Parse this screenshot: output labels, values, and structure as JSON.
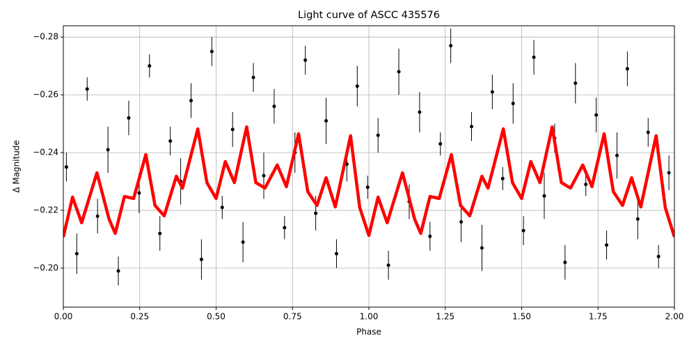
{
  "chart_data": {
    "type": "scatter-line",
    "title": "Light curve of ASCC 435576",
    "xlabel": "Phase",
    "ylabel": "Δ Magnitude",
    "xlim": [
      0,
      2
    ],
    "ylim": [
      -0.2839,
      -0.1865
    ],
    "y_inverted": true,
    "grid": true,
    "xticks": [
      {
        "value": 0,
        "label": "0.00"
      },
      {
        "value": 0.25,
        "label": "0.25"
      },
      {
        "value": 0.5,
        "label": "0.50"
      },
      {
        "value": 0.75,
        "label": "0.75"
      },
      {
        "value": 1,
        "label": "1.00"
      },
      {
        "value": 1.25,
        "label": "1.25"
      },
      {
        "value": 1.5,
        "label": "1.50"
      },
      {
        "value": 1.75,
        "label": "1.75"
      },
      {
        "value": 2,
        "label": "2.00"
      }
    ],
    "yticks": [
      {
        "value": -0.28,
        "label": "−0.28"
      },
      {
        "value": -0.26,
        "label": "−0.26"
      },
      {
        "value": -0.24,
        "label": "−0.24"
      },
      {
        "value": -0.22,
        "label": "−0.22"
      },
      {
        "value": -0.2,
        "label": "−0.20"
      }
    ],
    "points": {
      "color": "#000000",
      "x": [
        0.01,
        0.044,
        0.078,
        0.112,
        0.146,
        0.18,
        0.214,
        0.248,
        0.282,
        0.316,
        0.35,
        0.384,
        0.418,
        0.452,
        0.486,
        0.52,
        0.554,
        0.588,
        0.622,
        0.656,
        0.69,
        0.724,
        0.758,
        0.792,
        0.826,
        0.86,
        0.894,
        0.928,
        0.962,
        0.996,
        1.03,
        1.064,
        1.098,
        1.132,
        1.166,
        1.2,
        1.234,
        1.268,
        1.302,
        1.336,
        1.37,
        1.404,
        1.438,
        1.472,
        1.506,
        1.54,
        1.574,
        1.608,
        1.642,
        1.676,
        1.71,
        1.744,
        1.778,
        1.812,
        1.846,
        1.88,
        1.914,
        1.948,
        1.982
      ],
      "y": [
        -0.235,
        -0.205,
        -0.262,
        -0.218,
        -0.241,
        -0.199,
        -0.252,
        -0.226,
        -0.27,
        -0.212,
        -0.244,
        -0.23,
        -0.258,
        -0.203,
        -0.275,
        -0.221,
        -0.248,
        -0.209,
        -0.266,
        -0.232,
        -0.256,
        -0.214,
        -0.24,
        -0.272,
        -0.219,
        -0.251,
        -0.205,
        -0.236,
        -0.263,
        -0.228,
        -0.246,
        -0.201,
        -0.268,
        -0.223,
        -0.254,
        -0.211,
        -0.243,
        -0.277,
        -0.216,
        -0.249,
        -0.207,
        -0.261,
        -0.231,
        -0.257,
        -0.213,
        -0.273,
        -0.225,
        -0.245,
        -0.202,
        -0.264,
        -0.229,
        -0.253,
        -0.208,
        -0.239,
        -0.269,
        -0.217,
        -0.247,
        -0.204,
        -0.233
      ],
      "errors": [
        0.005,
        0.007,
        0.004,
        0.006,
        0.008,
        0.005,
        0.006,
        0.007,
        0.004,
        0.006,
        0.005,
        0.008,
        0.006,
        0.007,
        0.005,
        0.004,
        0.006,
        0.007,
        0.005,
        0.008,
        0.006,
        0.004,
        0.007,
        0.005,
        0.006,
        0.008,
        0.005,
        0.006,
        0.007,
        0.004,
        0.006,
        0.005,
        0.008,
        0.006,
        0.007,
        0.005,
        0.004,
        0.006,
        0.007,
        0.005,
        0.008,
        0.006,
        0.004,
        0.007,
        0.005,
        0.006,
        0.008,
        0.005,
        0.006,
        0.007,
        0.004,
        0.006,
        0.005,
        0.008,
        0.006,
        0.007,
        0.005,
        0.004,
        0.006
      ]
    },
    "model": {
      "color": "#ff0000",
      "x": [
        0,
        0.03,
        0.06,
        0.11,
        0.15,
        0.17,
        0.2,
        0.23,
        0.27,
        0.3,
        0.33,
        0.37,
        0.39,
        0.44,
        0.47,
        0.5,
        0.53,
        0.56,
        0.6,
        0.63,
        0.66,
        0.7,
        0.73,
        0.77,
        0.8,
        0.83,
        0.86,
        0.89,
        0.94,
        0.97,
        1.0,
        1.03,
        1.06,
        1.11,
        1.15,
        1.17,
        1.2,
        1.23,
        1.27,
        1.3,
        1.33,
        1.37,
        1.39,
        1.44,
        1.47,
        1.5,
        1.53,
        1.56,
        1.6,
        1.63,
        1.66,
        1.7,
        1.73,
        1.77,
        1.8,
        1.83,
        1.86,
        1.89,
        1.94,
        1.97,
        2.0
      ],
      "y": [
        -0.2108,
        -0.2246,
        -0.2157,
        -0.233,
        -0.2169,
        -0.212,
        -0.2248,
        -0.2241,
        -0.2393,
        -0.2217,
        -0.2181,
        -0.2318,
        -0.2277,
        -0.2482,
        -0.2296,
        -0.2241,
        -0.2369,
        -0.2296,
        -0.2489,
        -0.2296,
        -0.2277,
        -0.2357,
        -0.2282,
        -0.2465,
        -0.2265,
        -0.2217,
        -0.2313,
        -0.2212,
        -0.2458,
        -0.221,
        -0.2113,
        -0.2246,
        -0.2157,
        -0.233,
        -0.2169,
        -0.212,
        -0.2248,
        -0.2241,
        -0.2393,
        -0.2217,
        -0.2181,
        -0.2318,
        -0.2277,
        -0.2482,
        -0.2296,
        -0.2241,
        -0.2369,
        -0.2296,
        -0.2489,
        -0.2296,
        -0.2277,
        -0.2357,
        -0.2282,
        -0.2465,
        -0.2265,
        -0.2217,
        -0.2313,
        -0.2212,
        -0.2458,
        -0.221,
        -0.2108
      ]
    }
  }
}
